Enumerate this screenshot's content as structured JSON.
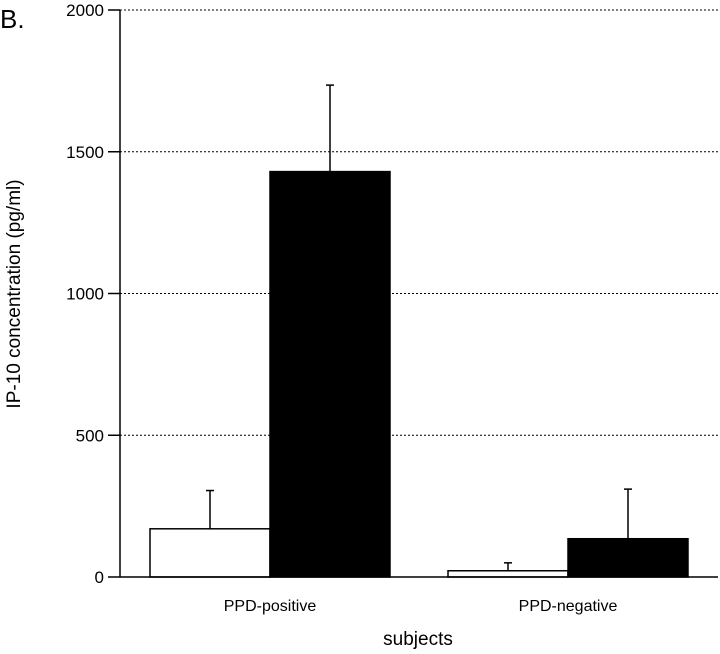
{
  "chart_data": {
    "type": "bar",
    "panel_label": "B.",
    "title": "",
    "xlabel": "subjects",
    "ylabel": "IP-10 concentration (pg/ml)",
    "ylim": [
      0,
      2000
    ],
    "yticks": [
      0,
      500,
      1000,
      1500,
      2000
    ],
    "grid": "horizontal-dotted",
    "categories": [
      "PPD-positive",
      "PPD-negative"
    ],
    "series": [
      {
        "fill": "#ffffff",
        "values": [
          170,
          22
        ],
        "errors": [
          135,
          28
        ]
      },
      {
        "fill": "#000000",
        "values": [
          1430,
          135
        ],
        "errors": [
          305,
          175
        ]
      }
    ]
  }
}
